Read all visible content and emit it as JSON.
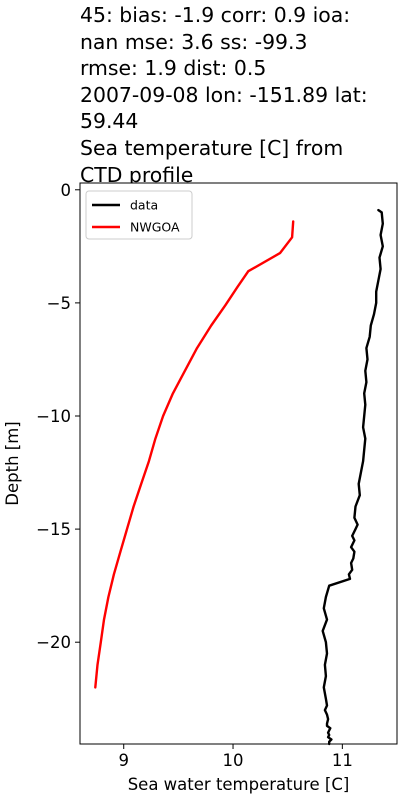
{
  "chart_data": {
    "type": "line",
    "title_lines": [
      "45: bias: -1.9  corr: 0.9  ioa:",
      "nan  mse: 3.6  ss: -99.3",
      "rmse: 1.9  dist: 0.5",
      "2007-09-08 lon: -151.89 lat:",
      "59.44",
      "Sea temperature [C] from",
      "CTD profile"
    ],
    "xlabel": "Sea water temperature [C]",
    "ylabel": "Depth [m]",
    "xlim": [
      8.6,
      11.5
    ],
    "ylim": [
      -24.5,
      0.3
    ],
    "xticks": [
      9,
      10,
      11
    ],
    "yticks": [
      0,
      -5,
      -10,
      -15,
      -20
    ],
    "legend_position": "upper-left",
    "series": [
      {
        "name": "data",
        "color": "#000000",
        "x": [
          11.33,
          11.36,
          11.37,
          11.35,
          11.37,
          11.34,
          11.35,
          11.33,
          11.31,
          11.31,
          11.29,
          11.26,
          11.25,
          11.22,
          11.23,
          11.21,
          11.22,
          11.2,
          11.21,
          11.2,
          11.19,
          11.21,
          11.2,
          11.19,
          11.17,
          11.15,
          11.16,
          11.12,
          11.11,
          11.14,
          11.12,
          11.09,
          11.11,
          11.08,
          11.11,
          11.1,
          11.08,
          11.09,
          11.06,
          11.07,
          10.88,
          10.85,
          10.83,
          10.86,
          10.82,
          10.85,
          10.86,
          10.84,
          10.85,
          10.83,
          10.85,
          10.86,
          10.84,
          10.86,
          10.87,
          10.86,
          10.86,
          10.89,
          10.88,
          10.87,
          10.88,
          10.87,
          10.9,
          10.88,
          10.88
        ],
        "y": [
          -0.9,
          -1.0,
          -1.5,
          -2.0,
          -2.5,
          -3.0,
          -3.5,
          -4.0,
          -4.5,
          -5.0,
          -5.5,
          -6.0,
          -6.5,
          -7.0,
          -7.5,
          -8.0,
          -8.5,
          -9.0,
          -9.5,
          -10.0,
          -10.5,
          -11.0,
          -11.5,
          -12.0,
          -12.5,
          -13.0,
          -13.5,
          -14.0,
          -14.5,
          -14.8,
          -15.0,
          -15.3,
          -15.5,
          -15.8,
          -16.0,
          -16.3,
          -16.5,
          -16.8,
          -17.0,
          -17.2,
          -17.5,
          -18.0,
          -18.5,
          -19.0,
          -19.5,
          -20.0,
          -20.5,
          -21.0,
          -21.5,
          -22.0,
          -22.5,
          -22.8,
          -23.0,
          -23.2,
          -23.4,
          -23.6,
          -23.7,
          -23.8,
          -23.9,
          -24.0,
          -24.1,
          -24.2,
          -24.3,
          -24.4,
          -24.5
        ]
      },
      {
        "name": "NWGOA",
        "color": "#ff0000",
        "x": [
          10.55,
          10.54,
          10.43,
          10.14,
          10.04,
          9.93,
          9.8,
          9.67,
          9.56,
          9.45,
          9.36,
          9.29,
          9.23,
          9.16,
          9.09,
          9.03,
          8.97,
          8.91,
          8.86,
          8.82,
          8.79,
          8.76,
          8.74
        ],
        "y": [
          -1.4,
          -2.1,
          -2.8,
          -3.6,
          -4.3,
          -5.1,
          -6.0,
          -7.0,
          -8.0,
          -9.0,
          -10.0,
          -11.0,
          -12.0,
          -13.0,
          -14.0,
          -15.0,
          -16.0,
          -17.0,
          -18.0,
          -19.0,
          -20.0,
          -21.0,
          -22.0
        ]
      }
    ]
  }
}
